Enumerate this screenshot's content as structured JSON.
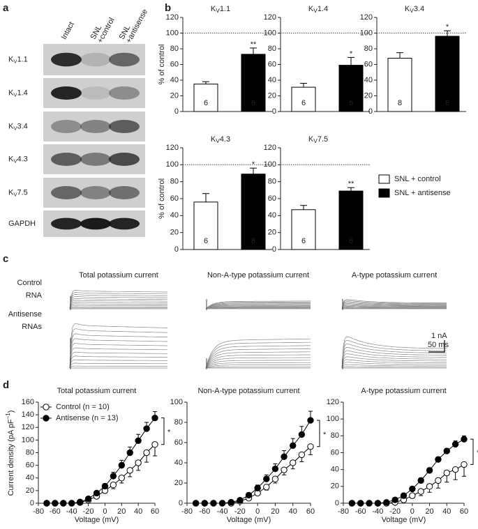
{
  "panel_labels": [
    "a",
    "b",
    "c",
    "d"
  ],
  "blot": {
    "columns": [
      [
        "Intact"
      ],
      [
        "SNL",
        "+control"
      ],
      [
        "SNL",
        "+antisense"
      ]
    ],
    "rows": [
      {
        "base": "K",
        "sub": "V",
        "suffix": "1.1"
      },
      {
        "base": "K",
        "sub": "V",
        "suffix": "1.4"
      },
      {
        "base": "K",
        "sub": "V",
        "suffix": "3.4"
      },
      {
        "base": "K",
        "sub": "V",
        "suffix": "4.3"
      },
      {
        "base": "K",
        "sub": "V",
        "suffix": "7.5"
      },
      {
        "base": "GAPDH"
      }
    ]
  },
  "traces": {
    "titles": [
      "Total potassium current",
      "Non-A-type potassium current",
      "A-type potassium current"
    ],
    "rows": [
      [
        "Control",
        "RNA"
      ],
      [
        "Antisense",
        "RNAs"
      ]
    ],
    "scale": [
      "1 nA",
      "50 ms"
    ]
  },
  "chart_data": [
    {
      "type": "bar",
      "ylabel": "% of control",
      "ylim": [
        0,
        120
      ],
      "yticks": [
        0,
        20,
        40,
        60,
        80,
        100,
        120
      ],
      "reference": 100,
      "series": [
        {
          "name": "SNL + control",
          "color": "#ffffff"
        },
        {
          "name": "SNL + antisense",
          "color": "#000000"
        }
      ],
      "charts": [
        {
          "title": {
            "base": "K",
            "sub": "V",
            "suffix": "1.1"
          },
          "values": [
            35,
            73
          ],
          "errors": [
            3,
            8
          ],
          "n": [
            6,
            6
          ],
          "significance": "**"
        },
        {
          "title": {
            "base": "K",
            "sub": "V",
            "suffix": "1.4"
          },
          "values": [
            31,
            59
          ],
          "errors": [
            5,
            10
          ],
          "n": [
            6,
            6
          ],
          "significance": "*"
        },
        {
          "title": {
            "base": "K",
            "sub": "V",
            "suffix": "3.4"
          },
          "values": [
            68,
            96
          ],
          "errors": [
            7,
            7
          ],
          "n": [
            8,
            8
          ],
          "significance": "*"
        },
        {
          "title": {
            "base": "K",
            "sub": "V",
            "suffix": "4.3"
          },
          "values": [
            56,
            89
          ],
          "errors": [
            10,
            7
          ],
          "n": [
            6,
            6
          ],
          "significance": "*"
        },
        {
          "title": {
            "base": "K",
            "sub": "V",
            "suffix": "7.5"
          },
          "values": [
            47,
            69
          ],
          "errors": [
            5,
            4
          ],
          "n": [
            6,
            6
          ],
          "significance": "**"
        }
      ]
    },
    {
      "type": "line",
      "title": "Total potassium current",
      "xlabel": "Voltage (mV)",
      "ylabel": {
        "text": "Current density (pA pF",
        "sup": "−1",
        "end": ")"
      },
      "x": [
        -70,
        -60,
        -50,
        -40,
        -30,
        -20,
        -10,
        0,
        10,
        20,
        30,
        40,
        50,
        60
      ],
      "xlim": [
        -80,
        60
      ],
      "xticks": [
        -80,
        -60,
        -40,
        -20,
        0,
        20,
        40,
        60
      ],
      "ylim": [
        0,
        160
      ],
      "yticks": [
        0,
        20,
        40,
        60,
        80,
        100,
        120,
        140,
        160
      ],
      "significance": "*",
      "series": [
        {
          "name": "Control (n = 10)",
          "marker": "open",
          "error_direction": "down",
          "values": [
            0,
            0,
            0,
            0,
            1,
            5,
            11,
            20,
            29,
            40,
            52,
            64,
            80,
            93
          ],
          "errors": [
            0,
            0,
            0,
            0,
            1,
            2,
            3,
            4,
            6,
            8,
            10,
            12,
            15,
            18
          ]
        },
        {
          "name": "Antisense (n = 13)",
          "marker": "filled",
          "error_direction": "up",
          "values": [
            0,
            0,
            0,
            0,
            2,
            7,
            16,
            27,
            43,
            60,
            80,
            99,
            118,
            135
          ],
          "errors": [
            0,
            0,
            0,
            0,
            1,
            2,
            3,
            4,
            6,
            8,
            9,
            10,
            10,
            10
          ]
        }
      ]
    },
    {
      "type": "line",
      "title": "Non-A-type potassium current",
      "xlabel": "Voltage (mV)",
      "x": [
        -70,
        -60,
        -50,
        -40,
        -30,
        -20,
        -10,
        0,
        10,
        20,
        30,
        40,
        50,
        60
      ],
      "xlim": [
        -80,
        60
      ],
      "xticks": [
        -80,
        -60,
        -40,
        -20,
        0,
        20,
        40,
        60
      ],
      "ylim": [
        0,
        100
      ],
      "yticks": [
        0,
        20,
        40,
        60,
        80,
        100
      ],
      "significance": "*",
      "series": [
        {
          "marker": "open",
          "error_direction": "down",
          "values": [
            0,
            0,
            0,
            0,
            0,
            2,
            5,
            10,
            16,
            24,
            33,
            40,
            48,
            56
          ],
          "errors": [
            0,
            0,
            0,
            0,
            0,
            1,
            1,
            2,
            3,
            4,
            5,
            6,
            7,
            8
          ]
        },
        {
          "marker": "filled",
          "error_direction": "up",
          "values": [
            0,
            0,
            0,
            0,
            1,
            3,
            8,
            15,
            24,
            34,
            46,
            57,
            68,
            82
          ],
          "errors": [
            0,
            0,
            0,
            0,
            0,
            1,
            2,
            3,
            4,
            5,
            6,
            7,
            8,
            9
          ]
        }
      ]
    },
    {
      "type": "line",
      "title": "A-type potassium current",
      "xlabel": "Voltage (mV)",
      "x": [
        -70,
        -60,
        -50,
        -40,
        -30,
        -20,
        -10,
        0,
        10,
        20,
        30,
        40,
        50,
        60
      ],
      "xlim": [
        -80,
        60
      ],
      "xticks": [
        -80,
        -60,
        -40,
        -20,
        0,
        20,
        40,
        60
      ],
      "ylim": [
        0,
        120
      ],
      "yticks": [
        0,
        20,
        40,
        60,
        80,
        100,
        120
      ],
      "significance": "*",
      "series": [
        {
          "marker": "open",
          "error_direction": "down",
          "values": [
            0,
            0,
            0,
            0,
            0,
            1,
            4,
            9,
            14,
            20,
            27,
            36,
            40,
            46
          ],
          "errors": [
            0,
            0,
            0,
            0,
            0,
            1,
            2,
            3,
            5,
            7,
            9,
            11,
            12,
            14
          ]
        },
        {
          "marker": "filled",
          "error_direction": "up",
          "values": [
            0,
            0,
            0,
            0,
            1,
            4,
            9,
            17,
            27,
            39,
            52,
            62,
            70,
            76
          ],
          "errors": [
            0,
            0,
            0,
            0,
            0,
            1,
            2,
            2,
            3,
            3,
            3,
            3,
            4,
            4
          ]
        }
      ]
    }
  ]
}
